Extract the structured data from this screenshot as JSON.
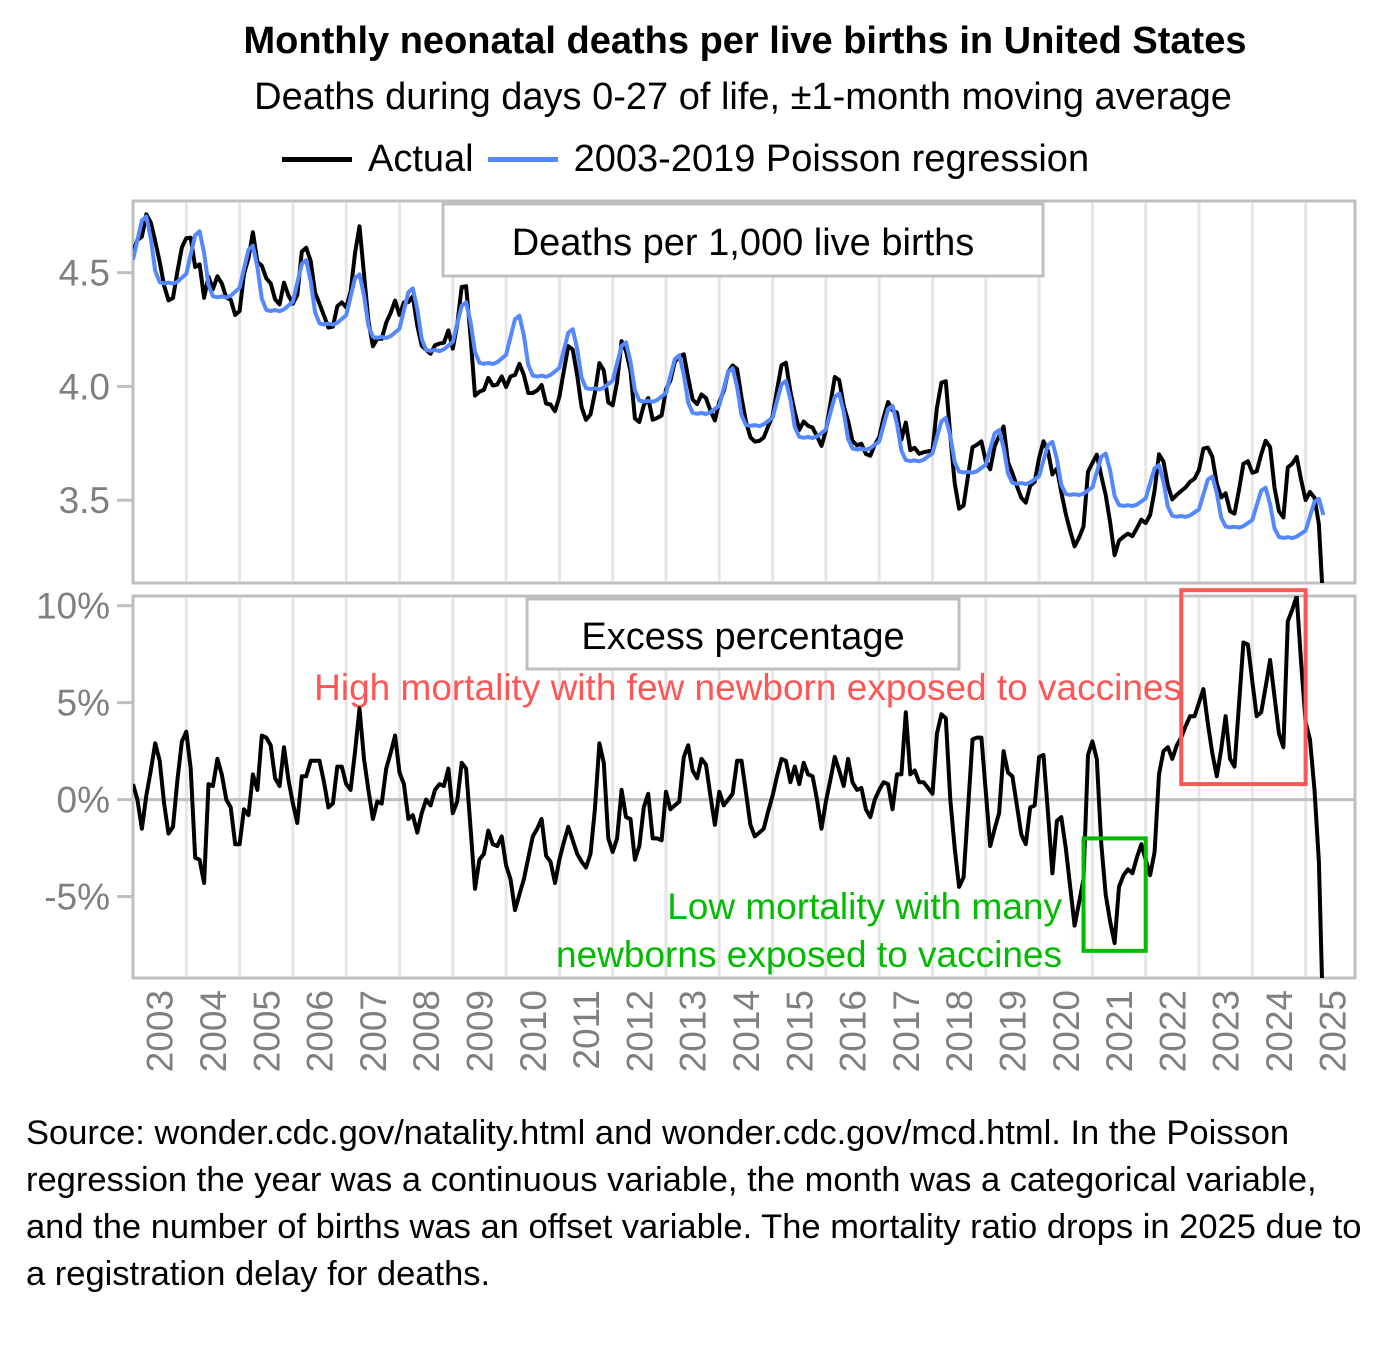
{
  "chart_data": [
    {
      "panel": "top",
      "type": "line",
      "title": "Monthly neonatal deaths per live births in United States",
      "subtitle": "Deaths during days 0-27 of life, ±1-month moving average",
      "panel_label": "Deaths per 1,000 live births",
      "ylabel": "",
      "xlabel": "",
      "ylim": [
        3.136,
        4.815
      ],
      "yticks": [
        3.5,
        4.0,
        4.5
      ],
      "ytick_labels": [
        "3.5",
        "4.0",
        "4.5"
      ],
      "grid": "vertical year lines",
      "legend_placement": "top",
      "series": [
        {
          "name": "Actual",
          "color": "#000000",
          "derived": "model * (1 + excess_pct/100)"
        },
        {
          "name": "2003-2019 Poisson regression",
          "color": "#5588ff",
          "derived": "model"
        }
      ]
    },
    {
      "panel": "bottom",
      "type": "line",
      "panel_label": "Excess percentage",
      "ylim": [
        -9.2,
        10.5
      ],
      "yticks": [
        -5,
        0,
        5,
        10
      ],
      "ytick_labels": [
        "-5%",
        "0%",
        "5%",
        "10%"
      ],
      "series": [
        {
          "name": "Excess percentage",
          "color": "#000000"
        }
      ],
      "annotations": [
        {
          "text": "High mortality with few newborn exposed to vaccines",
          "color": "#ff5555",
          "box": {
            "x_from": "2022-09",
            "x_to": "2025-01",
            "y_from": 0.8,
            "y_to": 10.8
          }
        },
        {
          "lines": [
            "Low mortality with many",
            "newborns exposed to vaccines"
          ],
          "color": "#00bb00",
          "box": {
            "x_from": "2020-11",
            "x_to": "2022-01",
            "y_from": -7.8,
            "y_to": -2.0
          }
        }
      ]
    }
  ],
  "x": {
    "start": "2003-01",
    "n_months": 269,
    "year_labels": [
      "2003",
      "2004",
      "2005",
      "2006",
      "2007",
      "2008",
      "2009",
      "2010",
      "2011",
      "2012",
      "2013",
      "2014",
      "2015",
      "2016",
      "2017",
      "2018",
      "2019",
      "2020",
      "2021",
      "2022",
      "2023",
      "2024",
      "2025"
    ]
  },
  "model": {
    "rate_2003_mean": 4.58,
    "annual_log_change": -0.01377,
    "seasonal_pct": [
      -0.5,
      1.5,
      3.5,
      4.0,
      2.0,
      -1.0,
      -2.0,
      -2.0,
      -1.8,
      -1.8,
      -1.5,
      -1.0
    ]
  },
  "excess_pct": [
    0.8,
    0.0,
    -1.5,
    0.2,
    1.5,
    2.9,
    2.0,
    -0.2,
    -1.75,
    -1.4,
    1.0,
    3.0,
    3.5,
    1.6,
    -3.0,
    -3.1,
    -4.3,
    0.8,
    0.7,
    2.1,
    1.3,
    0.0,
    -0.4,
    -2.3,
    -2.3,
    -0.5,
    -0.8,
    1.3,
    0.5,
    3.3,
    3.2,
    2.8,
    1.1,
    0.7,
    2.7,
    1.0,
    -0.2,
    -1.2,
    1.2,
    1.2,
    2.0,
    2.0,
    2.0,
    0.9,
    -0.4,
    -0.2,
    1.7,
    1.7,
    0.8,
    0.5,
    2.5,
    4.7,
    2.1,
    0.5,
    -1.0,
    -0.1,
    -0.2,
    1.6,
    2.4,
    3.3,
    1.4,
    0.8,
    -1.0,
    -0.8,
    -1.7,
    -0.7,
    0.0,
    -0.3,
    0.5,
    0.8,
    0.7,
    1.6,
    -0.7,
    -0.1,
    1.9,
    1.6,
    -1.5,
    -4.6,
    -3.1,
    -2.8,
    -1.6,
    -2.3,
    -2.4,
    -1.9,
    -3.4,
    -4.1,
    -5.7,
    -4.9,
    -4.1,
    -3.0,
    -1.9,
    -1.5,
    -1.0,
    -2.9,
    -3.2,
    -4.3,
    -3.1,
    -2.2,
    -1.4,
    -2.1,
    -2.8,
    -3.2,
    -3.5,
    -2.8,
    -0.5,
    2.9,
    1.9,
    -2.0,
    -2.7,
    -2.0,
    0.5,
    -0.9,
    -1.0,
    -3.1,
    -2.4,
    -0.4,
    0.3,
    -2.0,
    -2.0,
    -2.1,
    0.4,
    -0.5,
    -0.3,
    -0.1,
    2.2,
    2.8,
    1.5,
    1.1,
    2.1,
    1.8,
    0.2,
    -1.3,
    0.4,
    -0.3,
    0.0,
    0.3,
    2.0,
    2.0,
    0.4,
    -1.3,
    -1.9,
    -1.7,
    -1.5,
    -0.6,
    0.2,
    1.2,
    2.1,
    2.0,
    0.9,
    1.7,
    0.8,
    1.9,
    1.3,
    1.2,
    0.0,
    -1.5,
    -0.1,
    1.0,
    2.2,
    1.5,
    0.7,
    2.1,
    0.9,
    0.5,
    0.6,
    -0.5,
    -0.9,
    0.0,
    0.5,
    0.9,
    0.8,
    -0.5,
    1.3,
    1.3,
    4.5,
    1.3,
    1.5,
    0.9,
    0.9,
    0.6,
    0.3,
    3.4,
    4.4,
    4.2,
    0.0,
    -2.5,
    -4.5,
    -4.0,
    -0.5,
    3.1,
    3.2,
    3.2,
    0.4,
    -2.4,
    -1.5,
    -0.7,
    2.5,
    1.4,
    1.2,
    -0.3,
    -1.8,
    -2.3,
    -0.4,
    -0.3,
    2.2,
    2.3,
    -0.7,
    -3.8,
    -1.1,
    -0.9,
    -2.5,
    -4.5,
    -6.5,
    -5.3,
    -4.1,
    2.3,
    3.0,
    2.1,
    -2.3,
    -4.9,
    -6.3,
    -7.4,
    -4.5,
    -3.9,
    -3.6,
    -3.8,
    -3.0,
    -2.3,
    -3.1,
    -3.9,
    -2.7,
    1.3,
    2.5,
    2.7,
    2.1,
    2.8,
    3.2,
    3.8,
    4.3,
    4.3,
    5.0,
    5.7,
    3.9,
    2.4,
    1.2,
    2.6,
    4.3,
    2.1,
    1.7,
    4.9,
    8.1,
    8.0,
    6.1,
    4.3,
    4.5,
    5.8,
    7.2,
    5.3,
    3.4,
    2.7,
    9.2,
    9.8,
    10.5,
    7.0,
    4.0,
    3.1,
    0.5,
    -3.2,
    -12.0
  ],
  "header": {
    "title": "Monthly neonatal deaths per live births in United States",
    "subtitle": "Deaths during days 0-27 of life, ±1-month moving average"
  },
  "legend": {
    "items": [
      {
        "label": "Actual",
        "color": "#000000"
      },
      {
        "label": "2003-2019 Poisson regression",
        "color": "#5588ff"
      }
    ]
  },
  "panels": {
    "top_label": "Deaths per 1,000 live births",
    "bottom_label": "Excess percentage",
    "red_annotation": "High mortality with few newborn exposed to vaccines",
    "green_annotation_line1": "Low mortality with many",
    "green_annotation_line2": "newborns exposed to vaccines"
  },
  "colors": {
    "actual": "#000000",
    "model": "#5588ff",
    "red_annotation": "#ff5555",
    "green_annotation": "#00bb00",
    "axis_text": "#7f7f7f",
    "grid": "#e6e6e6",
    "frame": "#bfbfbf"
  },
  "footer": {
    "text": "Source: wonder.cdc.gov/natality.html and wonder.cdc.gov/mcd.html. In the Poisson regression the year was a continuous variable, the month was a categorical variable, and the number of births was an offset variable. The mortality ratio drops in 2025 due to a registration delay for deaths."
  }
}
